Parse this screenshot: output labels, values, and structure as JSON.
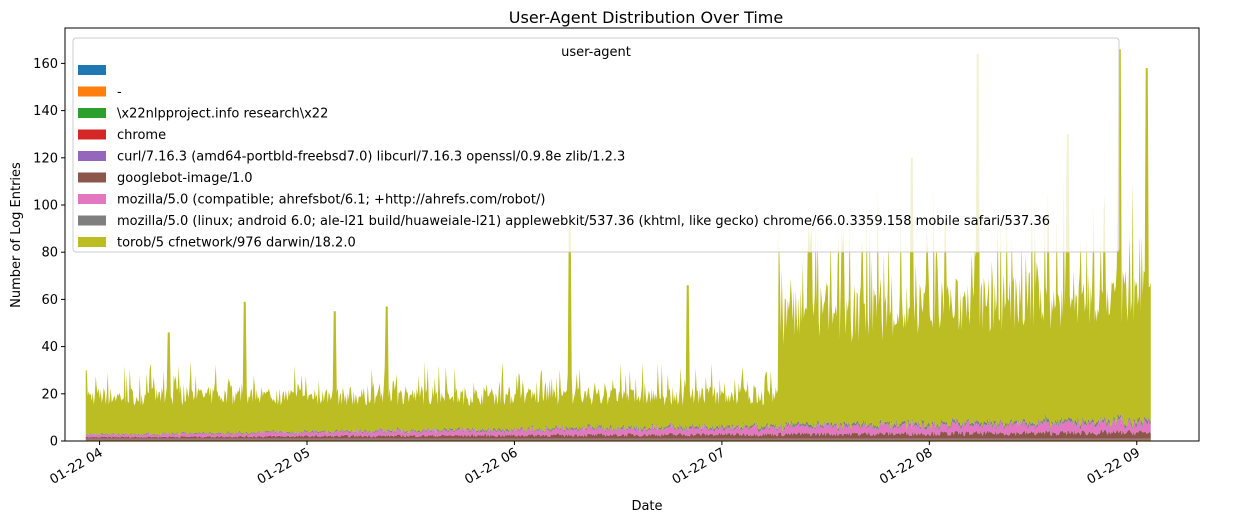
{
  "chart_data": {
    "type": "area",
    "title": "User-Agent Distribution Over Time",
    "xlabel": "Date",
    "ylabel": "Number of Log Entries",
    "ylim": [
      0,
      175
    ],
    "yticks": [
      0,
      20,
      40,
      60,
      80,
      100,
      120,
      140,
      160
    ],
    "x_range": [
      "2019-01-22 03:50",
      "2019-01-22 09:18"
    ],
    "x_ticks": [
      {
        "label": "01-22 04",
        "time": "2019-01-22 04:00"
      },
      {
        "label": "01-22 05",
        "time": "2019-01-22 05:00"
      },
      {
        "label": "01-22 06",
        "time": "2019-01-22 06:00"
      },
      {
        "label": "01-22 07",
        "time": "2019-01-22 07:00"
      },
      {
        "label": "01-22 08",
        "time": "2019-01-22 08:00"
      },
      {
        "label": "01-22 09",
        "time": "2019-01-22 09:00"
      }
    ],
    "data_range": [
      "2019-01-22 03:56",
      "2019-01-22 09:04"
    ],
    "stacked": true,
    "grid": false,
    "legend_title": "user-agent",
    "legend_position": "top",
    "series": [
      {
        "name": "",
        "color": "#1f77b4",
        "level": 0
      },
      {
        "name": "-",
        "color": "#ff7f0e",
        "level": 0
      },
      {
        "name": "\\x22nlpproject.info research\\x22",
        "color": "#2ca02c",
        "level": 0
      },
      {
        "name": "chrome",
        "color": "#d62728",
        "level": 0
      },
      {
        "name": "curl/7.16.3 (amd64-portbld-freebsd7.0) libcurl/7.16.3 openssl/0.9.8e zlib/1.2.3",
        "color": "#9467bd",
        "level": 0
      },
      {
        "name": "googlebot-image/1.0",
        "color": "#8c564b",
        "level": 2
      },
      {
        "name": "mozilla/5.0 (compatible; ahrefsbot/6.1; +http://ahrefs.com/robot/)",
        "color": "#e377c2",
        "level": 3
      },
      {
        "name": "mozilla/5.0 (linux; android 6.0; ale-l21 build/huaweiale-l21) applewebkit/537.36 (khtml, like gecko) chrome/66.0.3359.158 mobile safari/537.36",
        "color": "#7f7f7f",
        "level": 1
      },
      {
        "name": "torob/5 cfnetwork/976 darwin/18.2.0",
        "color": "#bcbd22",
        "level": 20
      }
    ],
    "peaks": [
      {
        "time": "2019-01-22 03:56",
        "value": 30
      },
      {
        "time": "2019-01-22 04:20",
        "value": 46
      },
      {
        "time": "2019-01-22 04:42",
        "value": 59
      },
      {
        "time": "2019-01-22 05:08",
        "value": 55
      },
      {
        "time": "2019-01-22 05:23",
        "value": 57
      },
      {
        "time": "2019-01-22 06:16",
        "value": 91
      },
      {
        "time": "2019-01-22 06:50",
        "value": 66
      },
      {
        "time": "2019-01-22 07:25",
        "value": 83
      },
      {
        "time": "2019-01-22 07:55",
        "value": 120
      },
      {
        "time": "2019-01-22 08:14",
        "value": 164
      },
      {
        "time": "2019-01-22 08:40",
        "value": 130
      },
      {
        "time": "2019-01-22 08:55",
        "value": 166
      },
      {
        "time": "2019-01-22 09:03",
        "value": 158
      }
    ]
  }
}
